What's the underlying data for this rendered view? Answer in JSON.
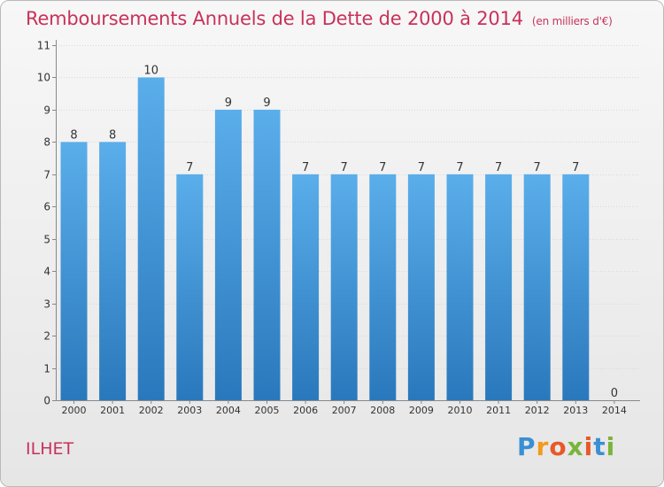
{
  "header": {
    "title": "Remboursements Annuels de la Dette de 2000 à 2014",
    "unit": "(en milliers d'€)"
  },
  "footer": {
    "commune": "ILHET",
    "logo_text": "Proxiti"
  },
  "colors": {
    "title": "#c8325a",
    "bar_light": "#5aaeea",
    "bar_dark": "#2a78bc"
  },
  "chart_data": {
    "type": "bar",
    "title": "Remboursements Annuels de la Dette de 2000 à 2014",
    "ylabel": "en milliers d'€",
    "xlabel": "",
    "categories": [
      "2000",
      "2001",
      "2002",
      "2003",
      "2004",
      "2005",
      "2006",
      "2007",
      "2008",
      "2009",
      "2010",
      "2011",
      "2012",
      "2013",
      "2014"
    ],
    "values": [
      8,
      8,
      10,
      7,
      9,
      9,
      7,
      7,
      7,
      7,
      7,
      7,
      7,
      7,
      0
    ],
    "ylim": [
      0,
      11
    ],
    "yticks": [
      0,
      1,
      2,
      3,
      4,
      5,
      6,
      7,
      8,
      9,
      10,
      11
    ],
    "grid": true
  }
}
